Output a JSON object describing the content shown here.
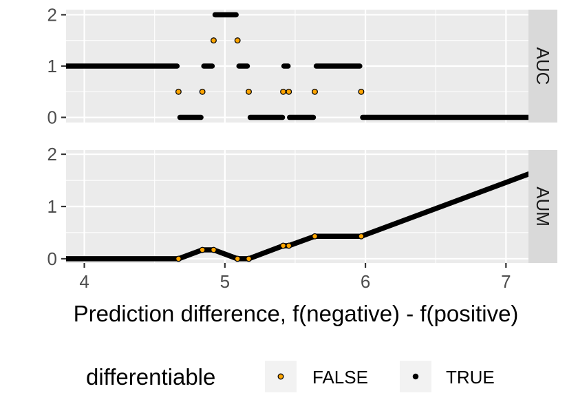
{
  "chart_data": {
    "type": "scatter",
    "xlabel": "Prediction difference, f(negative) - f(positive)",
    "xlim": [
      3.87,
      7.16
    ],
    "x_ticks": [
      4,
      5,
      6,
      7
    ],
    "colors": {
      "false_fill": "#FFA500",
      "true_fill": "#000000",
      "panel_bg": "#EBEBEB",
      "strip_bg": "#D9D9D9"
    },
    "legend": {
      "title": "differentiable",
      "entries": [
        {
          "label": "FALSE",
          "fill": "#FFA500"
        },
        {
          "label": "TRUE",
          "fill": "#000000"
        }
      ]
    },
    "panels": [
      {
        "strip": "AUC",
        "ylim": [
          -0.1,
          2.1
        ],
        "y_ticks": [
          0,
          1,
          2
        ],
        "true_segments": [
          {
            "x": [
              3.87,
              4.66
            ],
            "y": 1
          },
          {
            "x": [
              4.68,
              4.83
            ],
            "y": 0
          },
          {
            "x": [
              4.85,
              4.91
            ],
            "y": 1
          },
          {
            "x": [
              4.93,
              5.08
            ],
            "y": 2
          },
          {
            "x": [
              5.1,
              5.16
            ],
            "y": 1
          },
          {
            "x": [
              5.18,
              5.41
            ],
            "y": 0
          },
          {
            "x": [
              5.42,
              5.45
            ],
            "y": 1
          },
          {
            "x": [
              5.46,
              5.63
            ],
            "y": 0
          },
          {
            "x": [
              5.65,
              5.96
            ],
            "y": 1
          },
          {
            "x": [
              5.98,
              7.16
            ],
            "y": 0
          }
        ],
        "false_points": [
          {
            "x": 4.67,
            "y": 0.5
          },
          {
            "x": 4.84,
            "y": 0.5
          },
          {
            "x": 4.92,
            "y": 1.5
          },
          {
            "x": 5.09,
            "y": 1.5
          },
          {
            "x": 5.17,
            "y": 0.5
          },
          {
            "x": 5.415,
            "y": 0.5
          },
          {
            "x": 5.455,
            "y": 0.5
          },
          {
            "x": 5.64,
            "y": 0.5
          },
          {
            "x": 5.97,
            "y": 0.5
          }
        ]
      },
      {
        "strip": "AUM",
        "ylim": [
          -0.08,
          2.08
        ],
        "y_ticks": [
          0,
          1,
          2
        ],
        "true_segments": [
          {
            "x": [
              3.87,
              4.67
            ],
            "y": [
              0,
              0
            ]
          },
          {
            "x": [
              4.67,
              4.84
            ],
            "y": [
              0,
              0.17
            ]
          },
          {
            "x": [
              4.84,
              4.92
            ],
            "y": [
              0.17,
              0.17
            ]
          },
          {
            "x": [
              4.92,
              5.09
            ],
            "y": [
              0.17,
              0
            ]
          },
          {
            "x": [
              5.09,
              5.17
            ],
            "y": [
              0,
              0
            ]
          },
          {
            "x": [
              5.17,
              5.415
            ],
            "y": [
              0,
              0.25
            ]
          },
          {
            "x": [
              5.415,
              5.455
            ],
            "y": [
              0.25,
              0.25
            ]
          },
          {
            "x": [
              5.455,
              5.64
            ],
            "y": [
              0.25,
              0.43
            ]
          },
          {
            "x": [
              5.64,
              5.97
            ],
            "y": [
              0.43,
              0.43
            ]
          },
          {
            "x": [
              5.97,
              7.16
            ],
            "y": [
              0.43,
              1.62
            ]
          }
        ],
        "false_points": [
          {
            "x": 4.67,
            "y": 0
          },
          {
            "x": 4.84,
            "y": 0.17
          },
          {
            "x": 4.92,
            "y": 0.17
          },
          {
            "x": 5.09,
            "y": 0
          },
          {
            "x": 5.17,
            "y": 0
          },
          {
            "x": 5.415,
            "y": 0.25
          },
          {
            "x": 5.455,
            "y": 0.25
          },
          {
            "x": 5.64,
            "y": 0.43
          },
          {
            "x": 5.97,
            "y": 0.43
          }
        ]
      }
    ]
  }
}
